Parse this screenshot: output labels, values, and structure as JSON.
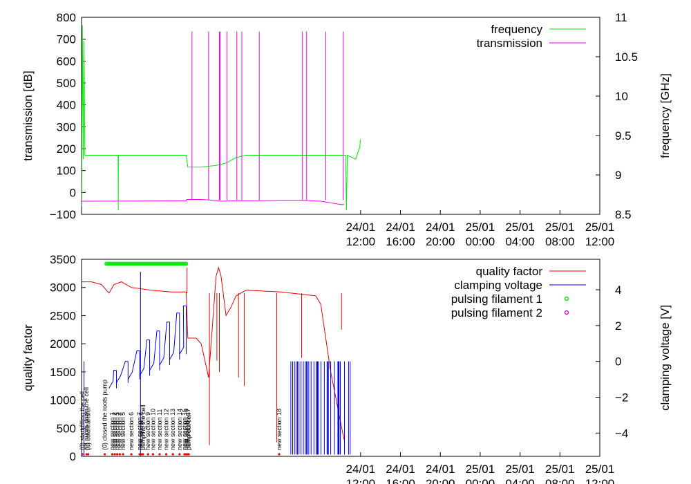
{
  "chart_data": [
    {
      "type": "line",
      "x_time_range": [
        "2013-01-23 08:00",
        "2013-01-25 12:00"
      ],
      "x_ticks": [
        {
          "t": "2013-01-24 12:00",
          "l1": "24/01",
          "l2": "12:00"
        },
        {
          "t": "2013-01-24 16:00",
          "l1": "24/01",
          "l2": "16:00"
        },
        {
          "t": "2013-01-24 20:00",
          "l1": "24/01",
          "l2": "20:00"
        },
        {
          "t": "2013-01-25 00:00",
          "l1": "25/01",
          "l2": "00:00"
        },
        {
          "t": "2013-01-25 04:00",
          "l1": "25/01",
          "l2": "04:00"
        },
        {
          "t": "2013-01-25 08:00",
          "l1": "25/01",
          "l2": "08:00"
        },
        {
          "t": "2013-01-25 12:00",
          "l1": "25/01",
          "l2": "12:00"
        }
      ],
      "ylabel": "transmission [dB]",
      "ylim": [
        -100,
        800
      ],
      "y_ticks": [
        -100,
        0,
        100,
        200,
        300,
        400,
        500,
        600,
        700,
        800
      ],
      "y_tick_labels": [
        "−100",
        "0",
        "100",
        "200",
        "300",
        "400",
        "500",
        "600",
        "700",
        "800"
      ],
      "y2label": "frequency [GHz]",
      "y2lim": [
        8.5,
        11
      ],
      "y2_ticks": [
        8.5,
        9,
        9.5,
        10,
        10.5,
        11
      ],
      "y2_tick_labels": [
        "8.5",
        "9",
        "9.5",
        "10",
        "10.5",
        "11"
      ],
      "legend_position": "top-right",
      "series": [
        {
          "name": "frequency",
          "axis": "y2",
          "color": "#00ee00",
          "points": [
            [
              "2013-01-23 08:00",
              8.6
            ],
            [
              "2013-01-23 08:05",
              10.9
            ],
            [
              "2013-01-23 08:10",
              9.2
            ],
            [
              "2013-01-23 08:15",
              10.7
            ],
            [
              "2013-01-23 08:20",
              9.25
            ],
            [
              "2013-01-23 11:40",
              9.25
            ],
            [
              "2013-01-23 11:41",
              8.55
            ],
            [
              "2013-01-23 11:42",
              9.25
            ],
            [
              "2013-01-23 18:30",
              9.25
            ],
            [
              "2013-01-23 18:40",
              9.1
            ],
            [
              "2013-01-23 20:00",
              9.1
            ],
            [
              "2013-01-23 21:30",
              9.12
            ],
            [
              "2013-01-23 22:30",
              9.15
            ],
            [
              "2013-01-23 23:30",
              9.22
            ],
            [
              "2013-01-24 00:30",
              9.25
            ],
            [
              "2013-01-24 10:30",
              9.25
            ],
            [
              "2013-01-24 10:35",
              8.55
            ],
            [
              "2013-01-24 10:40",
              9.25
            ],
            [
              "2013-01-24 11:30",
              9.2
            ],
            [
              "2013-01-24 11:55",
              9.35
            ],
            [
              "2013-01-24 12:00",
              9.45
            ]
          ]
        },
        {
          "name": "transmission",
          "axis": "y",
          "color": "#ee00ee",
          "points": [
            [
              "2013-01-23 08:00",
              -40
            ],
            [
              "2013-01-23 18:30",
              -38
            ],
            [
              "2013-01-23 18:35",
              -32
            ],
            [
              "2013-01-23 20:00",
              -32
            ],
            [
              "2013-01-23 21:00",
              -35
            ],
            [
              "2013-01-23 22:00",
              -40
            ],
            [
              "2013-01-23 23:30",
              -38
            ],
            [
              "2013-01-24 01:00",
              -38
            ],
            [
              "2013-01-24 04:00",
              -36
            ],
            [
              "2013-01-24 06:00",
              -36
            ],
            [
              "2013-01-24 08:00",
              -40
            ],
            [
              "2013-01-24 10:00",
              -55
            ],
            [
              "2013-01-24 10:20",
              -55
            ]
          ],
          "spikes_time": [
            "2013-01-23 19:05",
            "2013-01-23 20:45",
            "2013-01-23 21:50",
            "2013-01-23 21:55",
            "2013-01-23 22:35",
            "2013-01-23 23:35",
            "2013-01-24 00:05",
            "2013-01-24 01:50",
            "2013-01-24 06:10",
            "2013-01-24 06:35",
            "2013-01-24 08:30",
            "2013-01-24 10:15"
          ],
          "spike_value": 735
        }
      ]
    },
    {
      "type": "line",
      "x_time_range": [
        "2013-01-23 08:00",
        "2013-01-25 12:00"
      ],
      "x_ticks": [
        {
          "t": "2013-01-24 12:00",
          "l1": "24/01",
          "l2": "12:00"
        },
        {
          "t": "2013-01-24 16:00",
          "l1": "24/01",
          "l2": "16:00"
        },
        {
          "t": "2013-01-24 20:00",
          "l1": "24/01",
          "l2": "20:00"
        },
        {
          "t": "2013-01-25 00:00",
          "l1": "25/01",
          "l2": "00:00"
        },
        {
          "t": "2013-01-25 04:00",
          "l1": "25/01",
          "l2": "04:00"
        },
        {
          "t": "2013-01-25 08:00",
          "l1": "25/01",
          "l2": "08:00"
        },
        {
          "t": "2013-01-25 12:00",
          "l1": "25/01",
          "l2": "12:00"
        }
      ],
      "ylabel": "quality factor",
      "ylim": [
        0,
        3500
      ],
      "y_ticks": [
        0,
        500,
        1000,
        1500,
        2000,
        2500,
        3000,
        3500
      ],
      "y_tick_labels": [
        "0",
        "500",
        "1000",
        "1500",
        "2000",
        "2500",
        "3000",
        "3500"
      ],
      "y2label": "clamping voltage [V]",
      "y2lim": [
        -5.3,
        5.7
      ],
      "y2_ticks": [
        -4,
        -2,
        0,
        2,
        4
      ],
      "y2_tick_labels": [
        "−4",
        "−2",
        "0",
        "2",
        "4"
      ],
      "legend_position": "top-right",
      "series": [
        {
          "name": "quality factor",
          "axis": "y",
          "color": "#ee0000",
          "points": [
            [
              "2013-01-23 08:00",
              3100
            ],
            [
              "2013-01-23 09:00",
              3100
            ],
            [
              "2013-01-23 10:00",
              3050
            ],
            [
              "2013-01-23 10:45",
              2900
            ],
            [
              "2013-01-23 11:15",
              3050
            ],
            [
              "2013-01-23 12:00",
              3100
            ],
            [
              "2013-01-23 13:00",
              3000
            ],
            [
              "2013-01-23 15:00",
              2950
            ],
            [
              "2013-01-23 17:00",
              2920
            ],
            [
              "2013-01-23 18:30",
              2920
            ],
            [
              "2013-01-23 18:40",
              2100
            ],
            [
              "2013-01-23 19:30",
              2100
            ],
            [
              "2013-01-23 20:00",
              2000
            ],
            [
              "2013-01-23 20:30",
              1600
            ],
            [
              "2013-01-23 20:45",
              1400
            ],
            [
              "2013-01-23 21:00",
              2000
            ],
            [
              "2013-01-23 21:30",
              3200
            ],
            [
              "2013-01-23 21:45",
              3350
            ],
            [
              "2013-01-23 22:00",
              3200
            ],
            [
              "2013-01-23 22:30",
              2500
            ],
            [
              "2013-01-23 23:00",
              2650
            ],
            [
              "2013-01-23 23:30",
              2850
            ],
            [
              "2013-01-24 00:30",
              2950
            ],
            [
              "2013-01-24 04:00",
              2920
            ],
            [
              "2013-01-24 07:30",
              2850
            ],
            [
              "2013-01-24 08:00",
              2700
            ],
            [
              "2013-01-24 09:00",
              1500
            ],
            [
              "2013-01-24 10:00",
              600
            ],
            [
              "2013-01-24 10:20",
              300
            ]
          ],
          "spikes": [
            [
              "2013-01-23 18:35",
              3350
            ],
            [
              "2013-01-23 20:50",
              200
            ],
            [
              "2013-01-23 21:35",
              1700
            ],
            [
              "2013-01-23 21:50",
              1500
            ],
            [
              "2013-01-23 23:45",
              1400
            ],
            [
              "2013-01-24 00:20",
              1250
            ],
            [
              "2013-01-24 03:35",
              250
            ],
            [
              "2013-01-24 06:05",
              1750
            ],
            [
              "2013-01-24 10:05",
              2250
            ]
          ]
        },
        {
          "name": "clamping voltage",
          "axis": "y2",
          "color": "#0000ee",
          "ramp_cycles": [
            {
              "start": "2013-01-23 10:45",
              "end": "2013-01-23 11:30",
              "vmin": -1.5,
              "vmax": -0.5
            },
            {
              "start": "2013-01-23 11:30",
              "end": "2013-01-23 12:40",
              "vmin": -1.2,
              "vmax": 0.0
            },
            {
              "start": "2013-01-23 12:40",
              "end": "2013-01-23 13:50",
              "vmin": -1.0,
              "vmax": 0.6
            },
            {
              "start": "2013-01-23 13:50",
              "end": "2013-01-23 14:50",
              "vmin": -0.8,
              "vmax": 1.2
            },
            {
              "start": "2013-01-23 14:50",
              "end": "2013-01-23 15:50",
              "vmin": -0.5,
              "vmax": 1.7
            },
            {
              "start": "2013-01-23 15:50",
              "end": "2013-01-23 16:50",
              "vmin": -0.2,
              "vmax": 2.2
            },
            {
              "start": "2013-01-23 16:50",
              "end": "2013-01-23 17:50",
              "vmin": 0.1,
              "vmax": 2.7
            },
            {
              "start": "2013-01-23 17:50",
              "end": "2013-01-23 18:30",
              "vmin": 0.4,
              "vmax": 3.1
            }
          ],
          "spikes": [
            [
              "2013-01-23 08:15",
              0.0
            ],
            [
              "2013-01-23 13:55",
              5.0
            ]
          ],
          "burst_range": [
            "2013-01-24 05:00",
            "2013-01-24 11:00"
          ],
          "burst_values": [
            -5.2,
            0.0
          ]
        },
        {
          "name": "pulsing filament 1",
          "axis": "marker",
          "color": "#00ee00",
          "marker_range": [
            "2013-01-23 10:30",
            "2013-01-23 18:30"
          ],
          "marker_value": 3420
        },
        {
          "name": "pulsing filament 2",
          "axis": "marker",
          "color": "#ee00ee"
        }
      ],
      "annotations": [
        {
          "t": "2013-01-23 08:05",
          "text": "(0) start filling the cell"
        },
        {
          "t": "2013-01-23 08:30",
          "text": "(0) pump down the cell"
        },
        {
          "t": "2013-01-23 08:40",
          "text": "(0) cold transfer"
        },
        {
          "t": "2013-01-23 10:20",
          "text": "(0) closed the roots pump"
        },
        {
          "t": "2013-01-23 11:05",
          "text": "new section 1"
        },
        {
          "t": "2013-01-23 11:20",
          "text": "new section 2"
        },
        {
          "t": "2013-01-23 11:35",
          "text": "new section 3"
        },
        {
          "t": "2013-01-23 11:50",
          "text": "new section 4"
        },
        {
          "t": "2013-01-23 12:10",
          "text": "new section 5"
        },
        {
          "t": "2013-01-23 13:00",
          "text": "new section 6"
        },
        {
          "t": "2013-01-23 13:50",
          "text": "new section 7"
        },
        {
          "t": "2013-01-23 14:00",
          "text": "new section 8"
        },
        {
          "t": "2013-01-23 14:10",
          "text": "pumping the cell"
        },
        {
          "t": "2013-01-23 14:40",
          "text": "new section 9"
        },
        {
          "t": "2013-01-23 15:10",
          "text": "new section 10"
        },
        {
          "t": "2013-01-23 15:50",
          "text": "new section 11"
        },
        {
          "t": "2013-01-23 16:30",
          "text": "new section 12"
        },
        {
          "t": "2013-01-23 17:10",
          "text": "new section 13"
        },
        {
          "t": "2013-01-23 17:50",
          "text": "new section 14"
        },
        {
          "t": "2013-01-23 18:20",
          "text": "new section 15"
        },
        {
          "t": "2013-01-23 18:30",
          "text": "new section 16"
        },
        {
          "t": "2013-01-23 18:40",
          "text": "new section 17"
        },
        {
          "t": "2013-01-23 18:45",
          "text": "pump out cell"
        },
        {
          "t": "2013-01-24 03:50",
          "text": "new section 18"
        }
      ]
    }
  ]
}
